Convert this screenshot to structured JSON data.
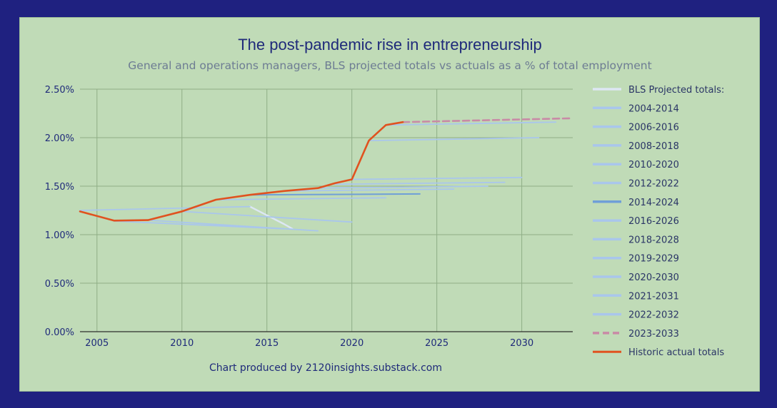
{
  "chart_data": {
    "type": "line",
    "title": "The post-pandemic rise in entrepreneurship",
    "subtitle": "General and operations managers, BLS projected totals vs actuals as a % of total employment",
    "xlabel": "",
    "ylabel": "",
    "xlim": [
      2004,
      2033
    ],
    "ylim": [
      0,
      0.025
    ],
    "x_ticks": [
      2005,
      2010,
      2015,
      2020,
      2025,
      2030
    ],
    "y_ticks": [
      0.0,
      0.005,
      0.01,
      0.015,
      0.02,
      0.025
    ],
    "y_tick_labels": [
      "0.00%",
      "0.50%",
      "1.00%",
      "1.50%",
      "2.00%",
      "2.50%"
    ],
    "x_tick_labels": [
      "2005",
      "2010",
      "2015",
      "2020",
      "2025",
      "2030"
    ],
    "grid": "vertical and horizontal",
    "legend_position": "right",
    "credit": "Chart produced by 2120insights.substack.com",
    "legend_header": "BLS Projected totals:",
    "colors": {
      "background": "#c0dbb7",
      "frame": "#1f2180",
      "grid": "#8fae86",
      "projection": "#a9c6ec",
      "projection_2014": "#6f9fd8",
      "projection_2023": "#c98aa6",
      "header_line": "#dde7f4",
      "historic": "#e0521f"
    },
    "series": [
      {
        "name": "BLS Projected totals:",
        "role": "header",
        "x": [
          2014,
          2016,
          2016.5
        ],
        "y": [
          0.0129,
          0.0111,
          0.0106
        ]
      },
      {
        "name": "2004-2014",
        "x": [
          2004,
          2014
        ],
        "y": [
          0.0125,
          0.0129
        ]
      },
      {
        "name": "2006-2016",
        "x": [
          2006,
          2016
        ],
        "y": [
          0.0114,
          0.0106
        ]
      },
      {
        "name": "2008-2018",
        "x": [
          2008,
          2018
        ],
        "y": [
          0.0115,
          0.0104
        ]
      },
      {
        "name": "2010-2020",
        "x": [
          2010,
          2020
        ],
        "y": [
          0.0124,
          0.0113
        ]
      },
      {
        "name": "2012-2022",
        "x": [
          2012,
          2022
        ],
        "y": [
          0.0136,
          0.0138
        ]
      },
      {
        "name": "2014-2024",
        "x": [
          2014,
          2024
        ],
        "y": [
          0.0141,
          0.0142
        ]
      },
      {
        "name": "2016-2026",
        "x": [
          2016,
          2026
        ],
        "y": [
          0.0145,
          0.0147
        ]
      },
      {
        "name": "2018-2028",
        "x": [
          2018,
          2028
        ],
        "y": [
          0.0148,
          0.015
        ]
      },
      {
        "name": "2019-2029",
        "x": [
          2019,
          2029
        ],
        "y": [
          0.0152,
          0.0154
        ]
      },
      {
        "name": "2020-2030",
        "x": [
          2020,
          2030
        ],
        "y": [
          0.0157,
          0.0159
        ]
      },
      {
        "name": "2021-2031",
        "x": [
          2021,
          2031
        ],
        "y": [
          0.0197,
          0.02
        ]
      },
      {
        "name": "2022-2032",
        "x": [
          2022,
          2032
        ],
        "y": [
          0.0213,
          0.0216
        ]
      },
      {
        "name": "2023-2033",
        "dashed": true,
        "x": [
          2023,
          2033
        ],
        "y": [
          0.0216,
          0.022
        ]
      },
      {
        "name": "Historic actual totals",
        "x": [
          2004,
          2006,
          2008,
          2010,
          2012,
          2014,
          2016,
          2018,
          2019,
          2020,
          2021,
          2022,
          2023
        ],
        "y": [
          0.0124,
          0.01145,
          0.0115,
          0.0124,
          0.0136,
          0.0141,
          0.0145,
          0.0148,
          0.0153,
          0.0157,
          0.0197,
          0.0213,
          0.0216
        ]
      }
    ]
  }
}
